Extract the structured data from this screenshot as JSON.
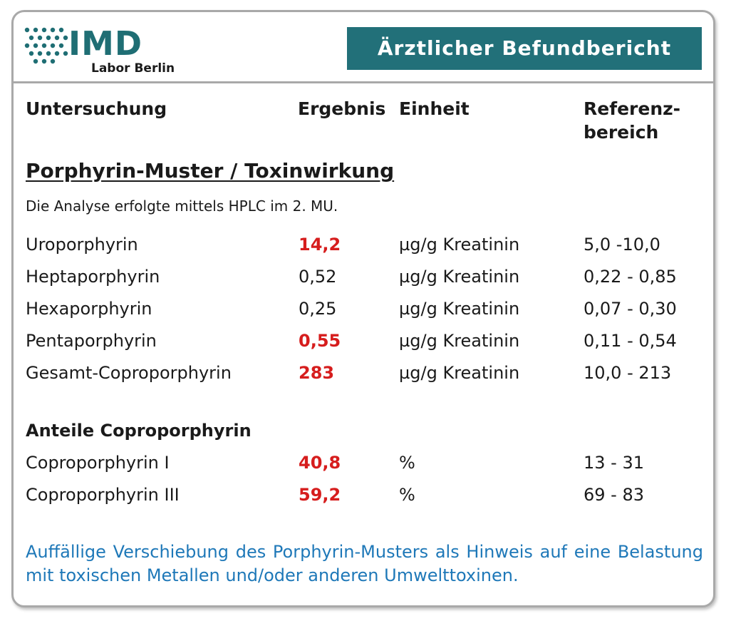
{
  "logo": {
    "name": "IMD",
    "subtitle": "Labor Berlin",
    "dot_color": "#1f6e74"
  },
  "banner": {
    "title": "Ärztlicher Befundbericht",
    "color": "#227079"
  },
  "columns": {
    "test": "Untersuchung",
    "result": "Ergebnis",
    "unit": "Einheit",
    "reference_1": "Referenz-",
    "reference_2": "bereich"
  },
  "section": {
    "title": "Porphyrin-Muster / Toxinwirkung",
    "method": "Die Analyse erfolgte mittels HPLC im 2. MU."
  },
  "rows": [
    {
      "name": "Uroporphyrin",
      "value": "14,2",
      "unit": "µg/g Kreatinin",
      "reference": "5,0 -10,0",
      "abnormal": true
    },
    {
      "name": "Heptaporphyrin",
      "value": "0,52",
      "unit": "µg/g Kreatinin",
      "reference": "0,22 - 0,85",
      "abnormal": false
    },
    {
      "name": "Hexaporphyrin",
      "value": "0,25",
      "unit": "µg/g Kreatinin",
      "reference": "0,07 - 0,30",
      "abnormal": false
    },
    {
      "name": "Pentaporphyrin",
      "value": "0,55",
      "unit": "µg/g Kreatinin",
      "reference": "0,11 - 0,54",
      "abnormal": true
    },
    {
      "name": "Gesamt-Coproporphyrin",
      "value": "283",
      "unit": "µg/g Kreatinin",
      "reference": "10,0 - 213",
      "abnormal": true
    }
  ],
  "subsection": {
    "title": "Anteile Coproporphyrin",
    "rows": [
      {
        "name": "Coproporphyrin I",
        "value": "40,8",
        "unit": "%",
        "reference": "13 - 31",
        "abnormal": true
      },
      {
        "name": "Coproporphyrin III",
        "value": "59,2",
        "unit": "%",
        "reference": "69 - 83",
        "abnormal": true
      }
    ]
  },
  "note": "Auffällige Verschiebung des Porphyrin-Musters als Hinweis auf eine Belastung mit toxischen Metallen und/oder anderen Umwelttoxinen.",
  "colors": {
    "abnormal": "#d61d1d",
    "note": "#1e78b8",
    "border": "#a9a9a9"
  }
}
